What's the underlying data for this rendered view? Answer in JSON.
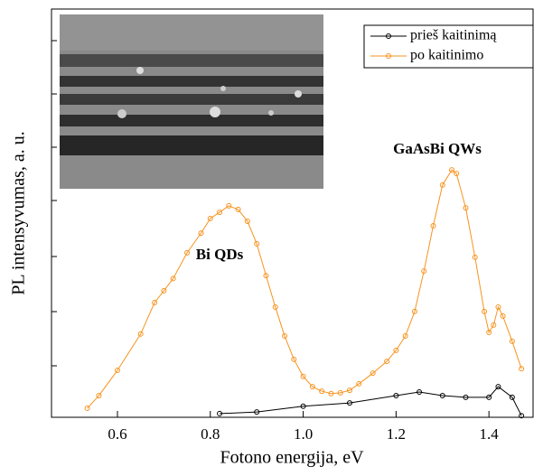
{
  "chart_data": {
    "type": "line",
    "xlabel": "Fotono energija, eV",
    "ylabel": "PL intensyvumas, a. u.",
    "annotations": [
      "GaAsBi QWs",
      "Bi QDs"
    ],
    "legend": "upper right",
    "xlim": [
      0.458,
      1.495
    ],
    "ylim": [
      0,
      1
    ],
    "xticks": [
      0.6,
      0.8,
      {
        "value": 1,
        "label": "1.0"
      },
      1.2,
      1.4
    ],
    "series": [
      {
        "name": "prieš kaitinimą",
        "color": "#000000",
        "x": [
          0.82,
          0.9,
          1.0,
          1.1,
          1.2,
          1.25,
          1.3,
          1.35,
          1.4,
          1.42,
          1.45,
          1.47
        ],
        "values": [
          0.009,
          0.013,
          0.027,
          0.035,
          0.053,
          0.062,
          0.053,
          0.049,
          0.049,
          0.075,
          0.049,
          0.004
        ]
      },
      {
        "name": "po kaitinimo",
        "color": "#f7931e",
        "x": [
          0.535,
          0.56,
          0.6,
          0.65,
          0.68,
          0.7,
          0.72,
          0.75,
          0.78,
          0.8,
          0.82,
          0.84,
          0.86,
          0.88,
          0.9,
          0.92,
          0.94,
          0.96,
          0.98,
          1.0,
          1.02,
          1.04,
          1.06,
          1.08,
          1.1,
          1.12,
          1.15,
          1.18,
          1.2,
          1.22,
          1.24,
          1.26,
          1.28,
          1.3,
          1.32,
          1.33,
          1.35,
          1.37,
          1.39,
          1.4,
          1.41,
          1.42,
          1.43,
          1.45,
          1.47
        ],
        "values": [
          0.022,
          0.053,
          0.115,
          0.204,
          0.281,
          0.31,
          0.34,
          0.403,
          0.451,
          0.487,
          0.502,
          0.518,
          0.509,
          0.48,
          0.425,
          0.347,
          0.27,
          0.199,
          0.142,
          0.1,
          0.075,
          0.064,
          0.058,
          0.06,
          0.066,
          0.082,
          0.108,
          0.137,
          0.164,
          0.199,
          0.259,
          0.358,
          0.469,
          0.569,
          0.606,
          0.597,
          0.513,
          0.392,
          0.259,
          0.208,
          0.226,
          0.27,
          0.248,
          0.186,
          0.119
        ]
      }
    ]
  }
}
